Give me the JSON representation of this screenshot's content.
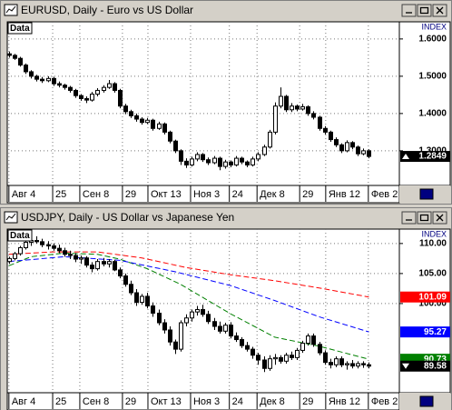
{
  "chart_data": [
    {
      "type": "candlestick",
      "title": "EURUSD, Daily - Euro vs US Dollar",
      "tag": "Data",
      "axis_title": "INDEX",
      "ylim": [
        1.207,
        1.646
      ],
      "yticks": [
        {
          "value": 1.6,
          "label": "1.6000"
        },
        {
          "value": 1.5,
          "label": "1.5000"
        },
        {
          "value": 1.4,
          "label": "1.4000"
        },
        {
          "value": 1.3,
          "label": "1.3000"
        }
      ],
      "xlim": [
        -0.3,
        70.5
      ],
      "xticks": [
        {
          "value": 0,
          "label": "Авг 4"
        },
        {
          "value": 7.9,
          "label": "25"
        },
        {
          "value": 12.8,
          "label": "Сен 8"
        },
        {
          "value": 20.5,
          "label": "29"
        },
        {
          "value": 25.1,
          "label": "Окт 13"
        },
        {
          "value": 32.8,
          "label": "Ноя 3"
        },
        {
          "value": 39.8,
          "label": "24"
        },
        {
          "value": 44.8,
          "label": "Дек 8"
        },
        {
          "value": 52.5,
          "label": "29"
        },
        {
          "value": 57.2,
          "label": "Янв 12"
        },
        {
          "value": 64.9,
          "label": "Фев 2"
        }
      ],
      "grid": true,
      "candles": [
        [
          1.56,
          1.566,
          1.55,
          1.556
        ],
        [
          1.556,
          1.56,
          1.544,
          1.548
        ],
        [
          1.548,
          1.552,
          1.526,
          1.53
        ],
        [
          1.53,
          1.534,
          1.506,
          1.512
        ],
        [
          1.512,
          1.516,
          1.494,
          1.5
        ],
        [
          1.5,
          1.504,
          1.486,
          1.492
        ],
        [
          1.492,
          1.498,
          1.482,
          1.488
        ],
        [
          1.488,
          1.5,
          1.484,
          1.494
        ],
        [
          1.494,
          1.498,
          1.474,
          1.48
        ],
        [
          1.48,
          1.486,
          1.47,
          1.476
        ],
        [
          1.476,
          1.48,
          1.464,
          1.47
        ],
        [
          1.47,
          1.474,
          1.456,
          1.462
        ],
        [
          1.462,
          1.466,
          1.442,
          1.448
        ],
        [
          1.448,
          1.452,
          1.434,
          1.44
        ],
        [
          1.44,
          1.446,
          1.428,
          1.436
        ],
        [
          1.436,
          1.458,
          1.432,
          1.452
        ],
        [
          1.452,
          1.468,
          1.446,
          1.462
        ],
        [
          1.462,
          1.476,
          1.456,
          1.47
        ],
        [
          1.47,
          1.49,
          1.466,
          1.48
        ],
        [
          1.48,
          1.484,
          1.456,
          1.462
        ],
        [
          1.462,
          1.466,
          1.414,
          1.42
        ],
        [
          1.42,
          1.426,
          1.398,
          1.405
        ],
        [
          1.405,
          1.41,
          1.388,
          1.394
        ],
        [
          1.394,
          1.4,
          1.378,
          1.385
        ],
        [
          1.385,
          1.39,
          1.37,
          1.376
        ],
        [
          1.376,
          1.388,
          1.372,
          1.382
        ],
        [
          1.382,
          1.386,
          1.354,
          1.36
        ],
        [
          1.36,
          1.378,
          1.356,
          1.372
        ],
        [
          1.372,
          1.376,
          1.344,
          1.35
        ],
        [
          1.35,
          1.354,
          1.32,
          1.326
        ],
        [
          1.326,
          1.33,
          1.294,
          1.3
        ],
        [
          1.3,
          1.304,
          1.262,
          1.272
        ],
        [
          1.272,
          1.28,
          1.254,
          1.262
        ],
        [
          1.262,
          1.284,
          1.258,
          1.278
        ],
        [
          1.278,
          1.296,
          1.272,
          1.29
        ],
        [
          1.29,
          1.294,
          1.27,
          1.276
        ],
        [
          1.276,
          1.282,
          1.262,
          1.268
        ],
        [
          1.268,
          1.286,
          1.264,
          1.28
        ],
        [
          1.28,
          1.284,
          1.248,
          1.258
        ],
        [
          1.258,
          1.276,
          1.252,
          1.27
        ],
        [
          1.27,
          1.274,
          1.256,
          1.262
        ],
        [
          1.262,
          1.286,
          1.258,
          1.28
        ],
        [
          1.28,
          1.284,
          1.264,
          1.27
        ],
        [
          1.27,
          1.274,
          1.256,
          1.262
        ],
        [
          1.262,
          1.284,
          1.258,
          1.278
        ],
        [
          1.278,
          1.296,
          1.272,
          1.29
        ],
        [
          1.29,
          1.316,
          1.286,
          1.31
        ],
        [
          1.31,
          1.356,
          1.306,
          1.35
        ],
        [
          1.35,
          1.43,
          1.344,
          1.42
        ],
        [
          1.42,
          1.47,
          1.414,
          1.446
        ],
        [
          1.446,
          1.45,
          1.404,
          1.41
        ],
        [
          1.41,
          1.428,
          1.404,
          1.42
        ],
        [
          1.42,
          1.424,
          1.406,
          1.412
        ],
        [
          1.412,
          1.426,
          1.408,
          1.418
        ],
        [
          1.418,
          1.422,
          1.394,
          1.4
        ],
        [
          1.4,
          1.406,
          1.384,
          1.39
        ],
        [
          1.39,
          1.394,
          1.354,
          1.36
        ],
        [
          1.36,
          1.366,
          1.344,
          1.35
        ],
        [
          1.35,
          1.354,
          1.324,
          1.33
        ],
        [
          1.33,
          1.336,
          1.31,
          1.316
        ],
        [
          1.316,
          1.32,
          1.294,
          1.3
        ],
        [
          1.3,
          1.328,
          1.296,
          1.322
        ],
        [
          1.322,
          1.326,
          1.304,
          1.31
        ],
        [
          1.31,
          1.314,
          1.286,
          1.292
        ],
        [
          1.292,
          1.306,
          1.288,
          1.3
        ],
        [
          1.3,
          1.304,
          1.28,
          1.2849
        ]
      ],
      "series": []
    },
    {
      "type": "candlestick",
      "title": "USDJPY, Daily - US Dollar vs Japanese Yen",
      "tag": "Data",
      "axis_title": "INDEX",
      "ylim": [
        85.15,
        112.4
      ],
      "yticks": [
        {
          "value": 110,
          "label": "110.00"
        },
        {
          "value": 105,
          "label": "105.00"
        },
        {
          "value": 100,
          "label": "100.00"
        }
      ],
      "xlim": [
        -0.3,
        70.5
      ],
      "xticks": [
        {
          "value": 0,
          "label": "Авг 4"
        },
        {
          "value": 7.9,
          "label": "25"
        },
        {
          "value": 12.8,
          "label": "Сен 8"
        },
        {
          "value": 20.5,
          "label": "29"
        },
        {
          "value": 25.1,
          "label": "Окт 13"
        },
        {
          "value": 32.8,
          "label": "Ноя 3"
        },
        {
          "value": 39.8,
          "label": "24"
        },
        {
          "value": 44.8,
          "label": "Дек 8"
        },
        {
          "value": 52.5,
          "label": "29"
        },
        {
          "value": 57.2,
          "label": "Янв 12"
        },
        {
          "value": 64.9,
          "label": "Фев 2"
        }
      ],
      "grid": true,
      "candles": [
        [
          107.0,
          107.8,
          106.6,
          107.5
        ],
        [
          107.5,
          108.6,
          107.2,
          108.3
        ],
        [
          108.3,
          109.6,
          108.0,
          109.3
        ],
        [
          109.3,
          110.6,
          109.0,
          110.2
        ],
        [
          110.2,
          110.9,
          109.6,
          110.5
        ],
        [
          110.5,
          111.2,
          110.0,
          110.3
        ],
        [
          110.3,
          110.8,
          109.4,
          109.8
        ],
        [
          109.8,
          110.4,
          109.0,
          109.6
        ],
        [
          109.6,
          110.0,
          108.8,
          109.2
        ],
        [
          109.2,
          109.8,
          108.4,
          108.8
        ],
        [
          108.8,
          109.3,
          107.8,
          108.2
        ],
        [
          108.2,
          108.8,
          107.4,
          108.0
        ],
        [
          108.0,
          108.4,
          106.9,
          107.4
        ],
        [
          107.4,
          108.0,
          106.6,
          107.6
        ],
        [
          107.6,
          107.9,
          106.0,
          106.4
        ],
        [
          106.4,
          106.9,
          105.2,
          105.8
        ],
        [
          105.8,
          107.4,
          105.5,
          107.0
        ],
        [
          107.0,
          107.6,
          106.2,
          106.6
        ],
        [
          106.6,
          107.4,
          106.0,
          107.0
        ],
        [
          107.0,
          107.3,
          105.4,
          105.6
        ],
        [
          105.6,
          106.0,
          104.2,
          104.6
        ],
        [
          104.6,
          105.0,
          102.8,
          103.2
        ],
        [
          103.2,
          103.8,
          101.4,
          101.8
        ],
        [
          101.8,
          102.4,
          99.6,
          100.2
        ],
        [
          100.2,
          101.6,
          99.8,
          101.2
        ],
        [
          101.2,
          101.8,
          99.2,
          99.6
        ],
        [
          99.6,
          100.2,
          97.8,
          98.4
        ],
        [
          98.4,
          99.0,
          96.4,
          96.8
        ],
        [
          96.8,
          97.4,
          95.0,
          95.6
        ],
        [
          95.6,
          96.2,
          93.0,
          93.6
        ],
        [
          93.6,
          94.0,
          91.6,
          92.4
        ],
        [
          92.4,
          97.2,
          92.0,
          96.8
        ],
        [
          96.8,
          98.2,
          96.2,
          97.6
        ],
        [
          97.6,
          99.0,
          97.0,
          98.6
        ],
        [
          98.6,
          99.6,
          98.0,
          99.0
        ],
        [
          99.0,
          99.8,
          97.8,
          98.2
        ],
        [
          98.2,
          98.8,
          96.6,
          97.0
        ],
        [
          97.0,
          97.6,
          95.6,
          96.2
        ],
        [
          96.2,
          97.0,
          95.0,
          95.4
        ],
        [
          95.4,
          96.8,
          95.0,
          96.4
        ],
        [
          96.4,
          96.9,
          94.2,
          94.6
        ],
        [
          94.6,
          95.2,
          93.6,
          94.0
        ],
        [
          94.0,
          94.4,
          92.6,
          93.0
        ],
        [
          93.0,
          93.6,
          92.0,
          92.4
        ],
        [
          92.4,
          92.8,
          90.8,
          91.4
        ],
        [
          91.4,
          91.8,
          89.8,
          90.6
        ],
        [
          90.6,
          91.2,
          88.6,
          89.2
        ],
        [
          89.2,
          91.4,
          88.8,
          90.8
        ],
        [
          90.8,
          91.6,
          89.8,
          91.0
        ],
        [
          91.0,
          91.4,
          90.0,
          90.4
        ],
        [
          90.4,
          91.8,
          90.0,
          91.4
        ],
        [
          91.4,
          92.0,
          90.6,
          91.0
        ],
        [
          91.0,
          92.6,
          90.6,
          92.2
        ],
        [
          92.2,
          93.8,
          91.8,
          93.4
        ],
        [
          93.4,
          95.0,
          93.0,
          94.6
        ],
        [
          94.6,
          95.0,
          92.8,
          93.2
        ],
        [
          93.2,
          93.6,
          91.4,
          91.8
        ],
        [
          91.8,
          92.2,
          89.8,
          90.2
        ],
        [
          90.2,
          90.8,
          89.2,
          89.8
        ],
        [
          89.8,
          91.2,
          89.4,
          90.8
        ],
        [
          90.8,
          91.2,
          89.4,
          89.8
        ],
        [
          89.8,
          90.4,
          89.0,
          90.0
        ],
        [
          90.0,
          90.6,
          89.2,
          89.6
        ],
        [
          89.6,
          90.4,
          89.2,
          90.0
        ],
        [
          90.0,
          90.4,
          89.3,
          89.8
        ],
        [
          89.8,
          90.2,
          89.2,
          89.58
        ]
      ],
      "series": [
        {
          "color": "#008000",
          "x": [
            0,
            4,
            10,
            16,
            20,
            25,
            31,
            40,
            48,
            56,
            65
          ],
          "values": [
            106.3,
            107.8,
            108.4,
            108.2,
            107.4,
            105.8,
            103.2,
            98.3,
            94.4,
            92.9,
            90.73
          ]
        },
        {
          "color": "#0000ff",
          "x": [
            0,
            10,
            20,
            30,
            40,
            48,
            56,
            65
          ],
          "values": [
            107.0,
            107.8,
            107.2,
            105.3,
            103.0,
            100.5,
            97.8,
            95.27
          ]
        },
        {
          "color": "#ff0000",
          "x": [
            0,
            8,
            16,
            24,
            32,
            40,
            48,
            56,
            65
          ],
          "values": [
            108.2,
            108.6,
            108.6,
            107.6,
            106.0,
            104.8,
            103.8,
            102.6,
            101.09
          ]
        }
      ]
    }
  ]
}
